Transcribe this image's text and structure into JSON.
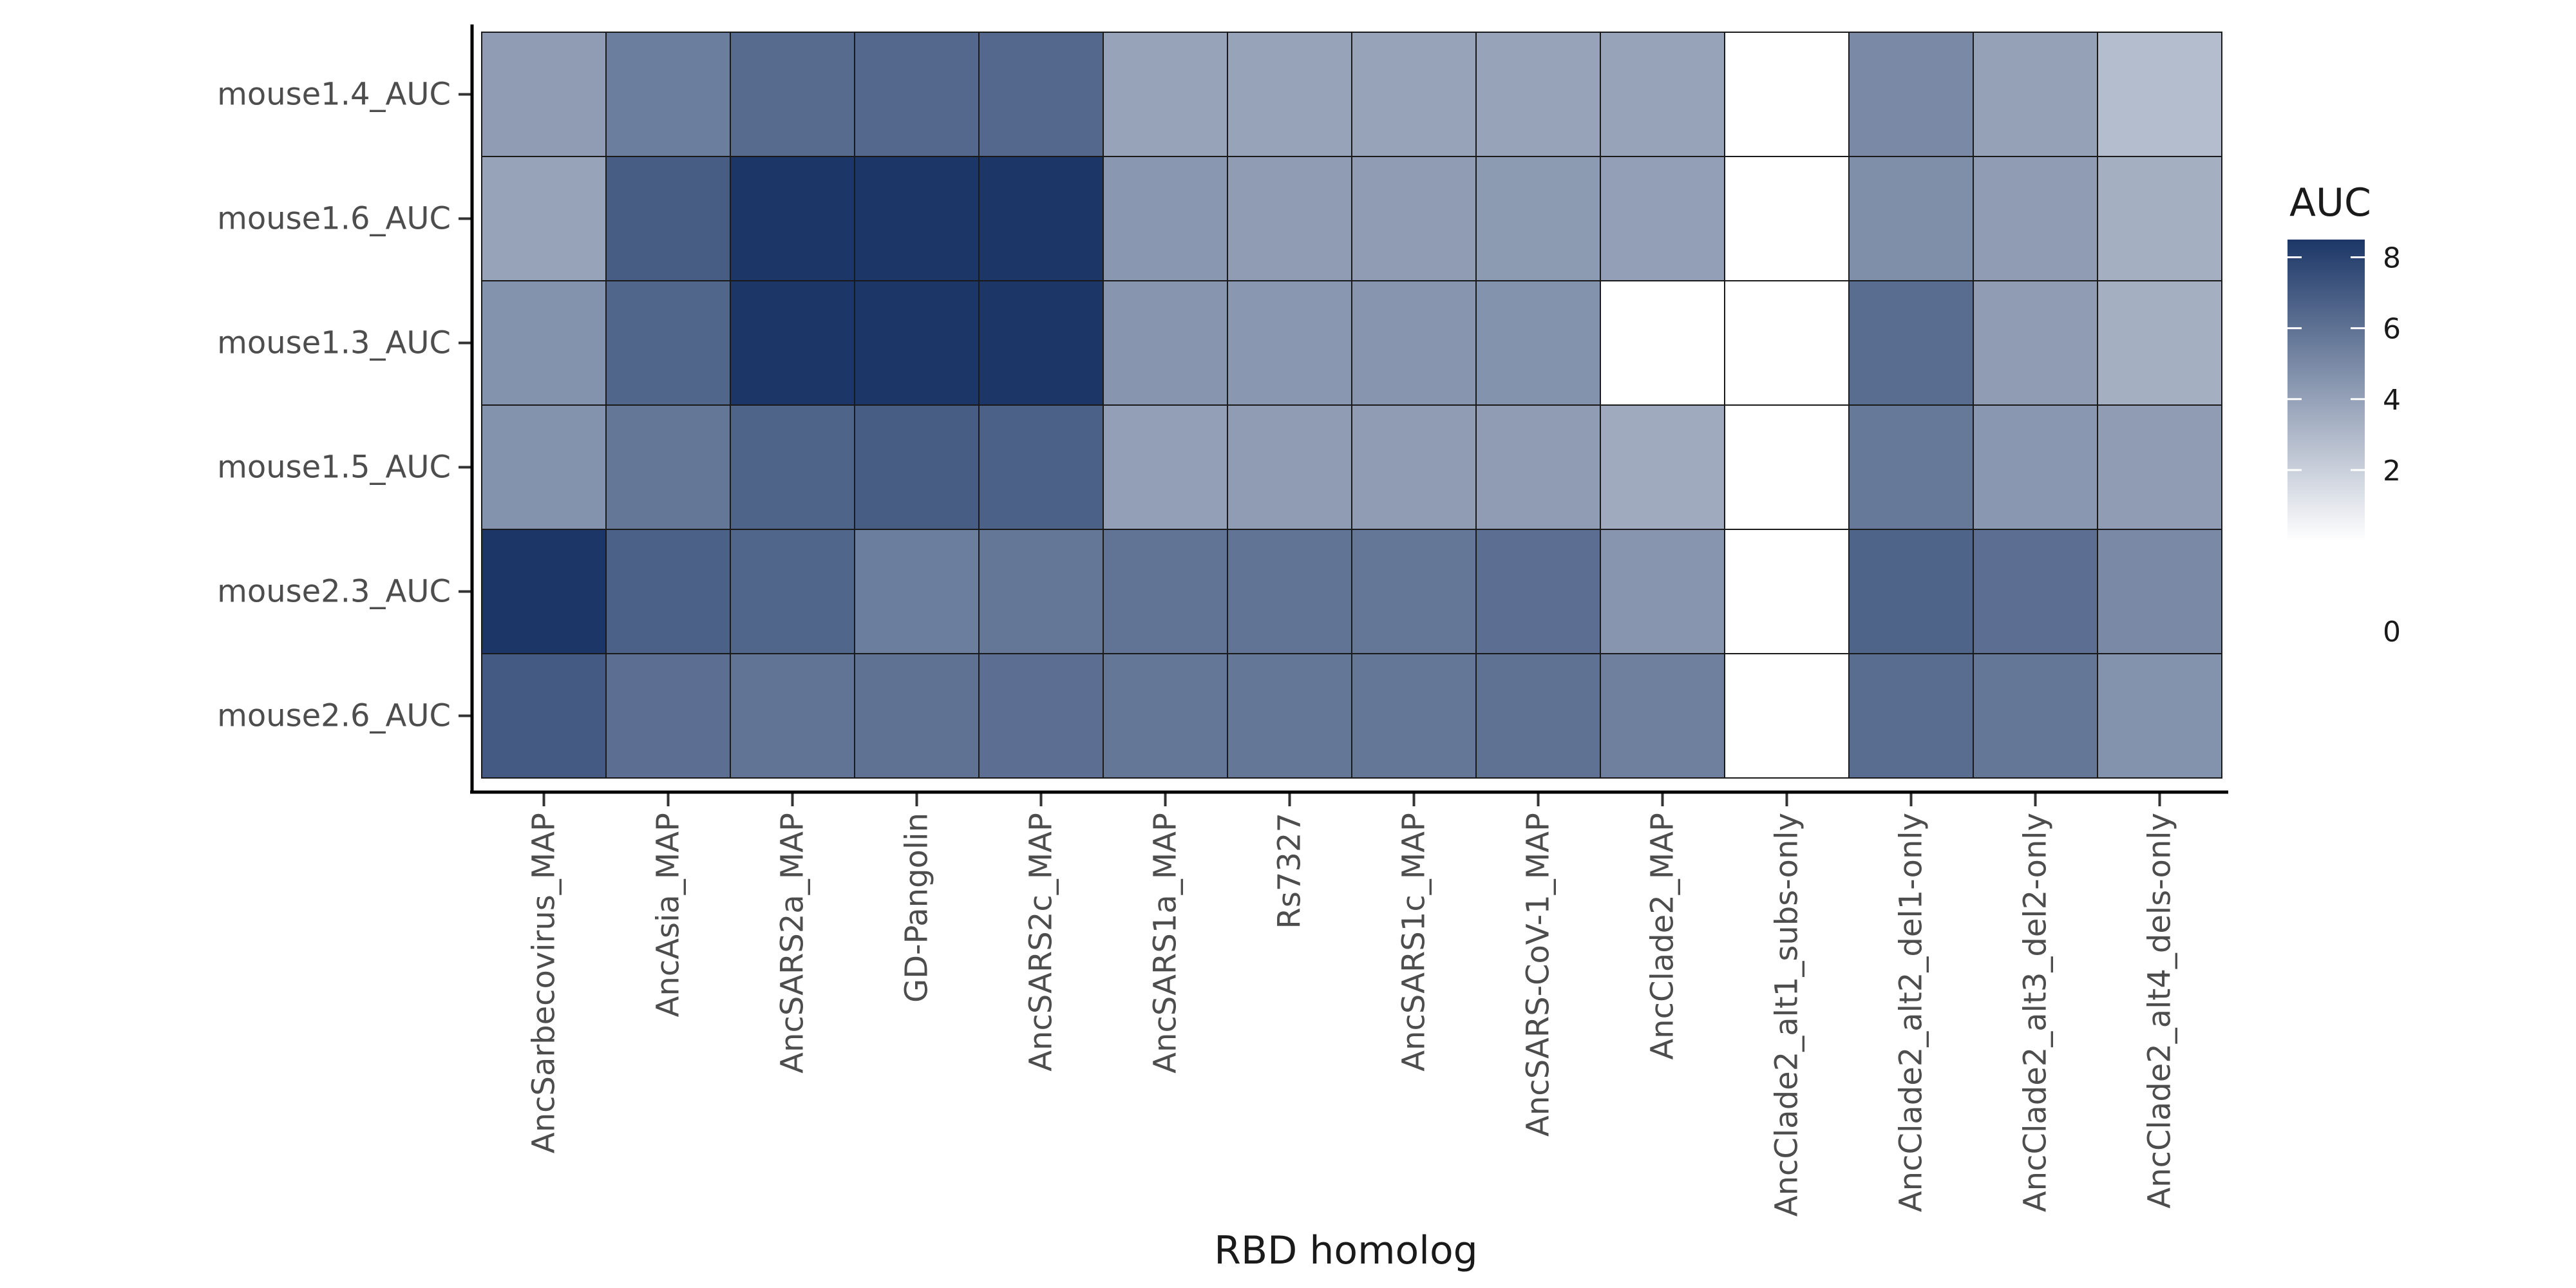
{
  "chart_data": {
    "type": "heatmap",
    "xlabel": "RBD homolog",
    "ylabel": "",
    "x_categories": [
      "AncSarbecovirus_MAP",
      "AncAsia_MAP",
      "AncSARS2a_MAP",
      "GD-Pangolin",
      "AncSARS2c_MAP",
      "AncSARS1a_MAP",
      "Rs7327",
      "AncSARS1c_MAP",
      "AncSARS-CoV-1_MAP",
      "AncClade2_MAP",
      "AncClade2_alt1_subs-only",
      "AncClade2_alt2_del1-only",
      "AncClade2_alt3_del2-only",
      "AncClade2_alt4_dels-only"
    ],
    "y_categories": [
      "mouse1.4_AUC",
      "mouse1.6_AUC",
      "mouse1.3_AUC",
      "mouse1.5_AUC",
      "mouse2.3_AUC",
      "mouse2.6_AUC"
    ],
    "values": [
      [
        4.2,
        5.5,
        6.3,
        6.4,
        6.4,
        3.9,
        3.9,
        3.9,
        3.9,
        3.9,
        null,
        5.0,
        4.0,
        2.8
      ],
      [
        3.9,
        6.9,
        8.5,
        8.5,
        8.5,
        4.4,
        4.2,
        4.2,
        4.3,
        4.1,
        null,
        4.8,
        4.2,
        3.4
      ],
      [
        4.6,
        6.5,
        8.5,
        8.5,
        8.5,
        4.5,
        4.4,
        4.5,
        4.6,
        null,
        null,
        6.2,
        4.2,
        3.4
      ],
      [
        4.6,
        5.8,
        6.6,
        6.9,
        6.7,
        4.1,
        4.2,
        4.2,
        4.2,
        3.6,
        null,
        5.7,
        4.4,
        4.2
      ],
      [
        8.6,
        6.7,
        6.5,
        5.5,
        5.8,
        5.9,
        5.9,
        5.8,
        6.1,
        4.5,
        null,
        6.6,
        6.1,
        5.0
      ],
      [
        7.0,
        6.1,
        5.9,
        6.0,
        6.1,
        5.8,
        5.8,
        5.8,
        6.0,
        5.4,
        null,
        6.2,
        5.8,
        4.6
      ]
    ],
    "legend": {
      "title": "AUC",
      "min": 0,
      "max": 8.5,
      "ticks": [
        0,
        2,
        4,
        6,
        8
      ],
      "low_color": "#ffffff",
      "high_color": "#1c3767"
    },
    "colors": {
      "missing": "#ffffff",
      "cell_border": "#1a1a1a",
      "axis": "#000000"
    }
  }
}
